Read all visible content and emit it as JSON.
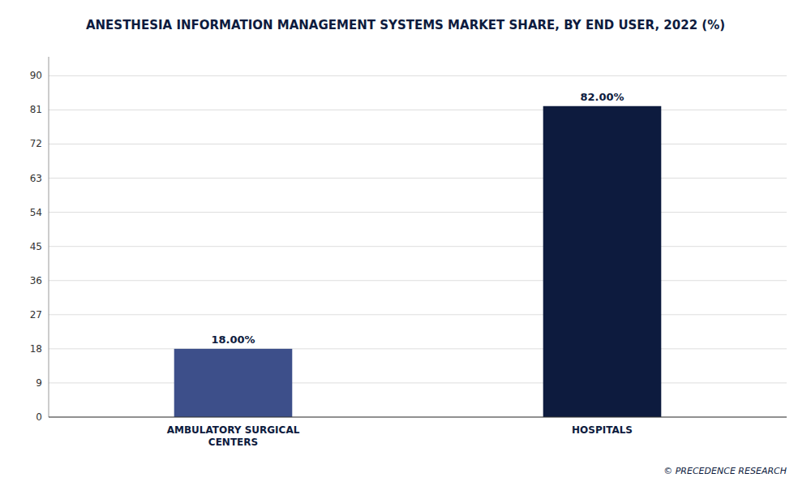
{
  "chart_data": {
    "type": "bar",
    "title": "ANESTHESIA INFORMATION MANAGEMENT SYSTEMS MARKET SHARE, BY END USER, 2022 (%)",
    "categories": [
      "AMBULATORY SURGICAL\nCENTERS",
      "HOSPITALS"
    ],
    "values": [
      18.0,
      82.0
    ],
    "value_labels": [
      "18.00%",
      "82.00%"
    ],
    "data_labels": true,
    "colors": [
      "#3d4f8a",
      "#0d1b3e"
    ],
    "ylim": [
      0,
      95
    ],
    "yticks": [
      0,
      9,
      18,
      27,
      36,
      45,
      54,
      63,
      72,
      81,
      90
    ],
    "grid": true,
    "annotations": [
      "© PRECEDENCE RESEARCH"
    ]
  }
}
